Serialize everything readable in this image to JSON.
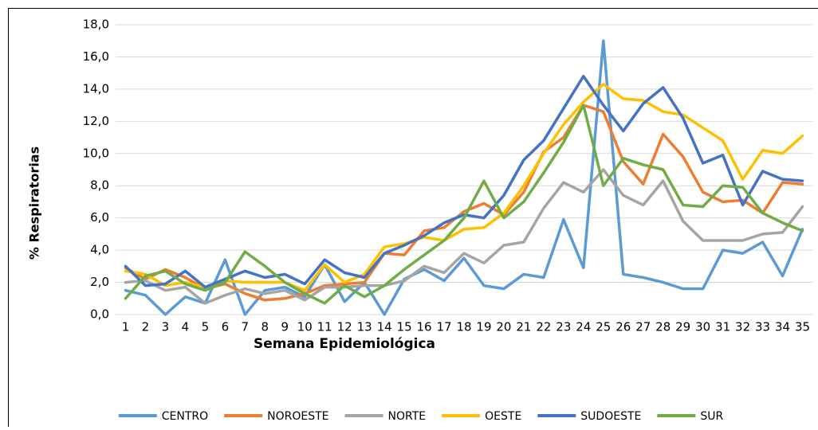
{
  "chart_data": {
    "type": "line",
    "x_label": "Semana Epidemiológica",
    "y_label": "% Respiratorias",
    "categories": [
      "1",
      "2",
      "3",
      "4",
      "5",
      "6",
      "7",
      "8",
      "9",
      "10",
      "11",
      "12",
      "13",
      "14",
      "15",
      "16",
      "17",
      "18",
      "19",
      "20",
      "21",
      "22",
      "23",
      "24",
      "25",
      "26",
      "27",
      "28",
      "29",
      "30",
      "31",
      "32",
      "33",
      "34",
      "35"
    ],
    "ylim": [
      0,
      18
    ],
    "yticks": [
      {
        "value": 0,
        "label": "0,0"
      },
      {
        "value": 2,
        "label": "2,0"
      },
      {
        "value": 4,
        "label": "4,0"
      },
      {
        "value": 6,
        "label": "6,0"
      },
      {
        "value": 8,
        "label": "8,0"
      },
      {
        "value": 10,
        "label": "10,0"
      },
      {
        "value": 12,
        "label": "12,0"
      },
      {
        "value": 14,
        "label": "14,0"
      },
      {
        "value": 16,
        "label": "16,0"
      },
      {
        "value": 18,
        "label": "18,0"
      }
    ],
    "grid": true,
    "legend": "bottom",
    "series": [
      {
        "name": "CENTRO",
        "color": "#5b9bd5",
        "values": [
          1.5,
          1.2,
          0,
          1.1,
          0.7,
          3.4,
          0,
          1.5,
          1.7,
          1.1,
          3.1,
          0.8,
          2.0,
          0,
          2.2,
          2.8,
          2.1,
          3.5,
          1.8,
          1.6,
          2.5,
          2.3,
          5.9,
          2.9,
          17.0,
          2.5,
          2.3,
          2.0,
          1.6,
          1.6,
          4.0,
          3.8,
          4.5,
          2.4,
          5.3
        ]
      },
      {
        "name": "NOROESTE",
        "color": "#ed7d31",
        "values": [
          2.9,
          2.2,
          2.8,
          2.3,
          1.6,
          1.9,
          1.3,
          0.9,
          1.0,
          1.3,
          1.8,
          1.9,
          2.0,
          3.8,
          3.7,
          5.2,
          5.4,
          6.4,
          6.9,
          6.2,
          7.6,
          10.1,
          11.0,
          13.0,
          12.6,
          9.5,
          8.1,
          11.2,
          9.8,
          7.6,
          7.0,
          7.1,
          6.3,
          8.2,
          8.1
        ]
      },
      {
        "name": "NORTE",
        "color": "#a5a5a5",
        "values": [
          2.0,
          2.1,
          1.5,
          1.7,
          0.7,
          1.2,
          1.6,
          1.3,
          1.5,
          0.9,
          1.7,
          1.7,
          1.8,
          1.8,
          2.1,
          3.0,
          2.6,
          3.8,
          3.2,
          4.3,
          4.5,
          6.6,
          8.2,
          7.6,
          9.0,
          7.4,
          6.8,
          8.3,
          5.8,
          4.6,
          4.6,
          4.6,
          5.0,
          5.1,
          6.7
        ]
      },
      {
        "name": "OESTE",
        "color": "#ffc000",
        "values": [
          2.7,
          2.5,
          1.8,
          2.0,
          1.7,
          2.1,
          2.0,
          2.0,
          2.0,
          1.5,
          3.1,
          2.0,
          2.5,
          4.2,
          4.4,
          4.8,
          4.6,
          5.3,
          5.4,
          6.3,
          8.0,
          10.0,
          11.8,
          13.2,
          14.3,
          13.4,
          13.3,
          12.6,
          12.4,
          11.6,
          10.8,
          8.4,
          10.2,
          10.0,
          11.1
        ]
      },
      {
        "name": "SUDOESTE",
        "color": "#4472c4",
        "values": [
          3.0,
          1.8,
          1.9,
          2.7,
          1.7,
          2.2,
          2.7,
          2.3,
          2.5,
          1.9,
          3.4,
          2.6,
          2.3,
          3.8,
          4.3,
          4.9,
          5.7,
          6.2,
          6.0,
          7.4,
          9.6,
          10.8,
          12.8,
          14.8,
          13.0,
          11.4,
          13.1,
          14.1,
          12.2,
          9.4,
          9.9,
          6.8,
          8.9,
          8.4,
          8.3
        ]
      },
      {
        "name": "SUR",
        "color": "#70ad47",
        "values": [
          1.0,
          2.4,
          2.7,
          1.9,
          1.5,
          2.0,
          3.9,
          3.0,
          2.0,
          1.3,
          0.7,
          1.8,
          1.1,
          1.8,
          2.8,
          3.7,
          4.6,
          6.0,
          8.3,
          6.0,
          7.0,
          8.8,
          10.7,
          13.0,
          8.0,
          9.7,
          9.3,
          9.0,
          6.8,
          6.7,
          8.0,
          7.9,
          6.3,
          5.7,
          5.2
        ]
      }
    ]
  }
}
